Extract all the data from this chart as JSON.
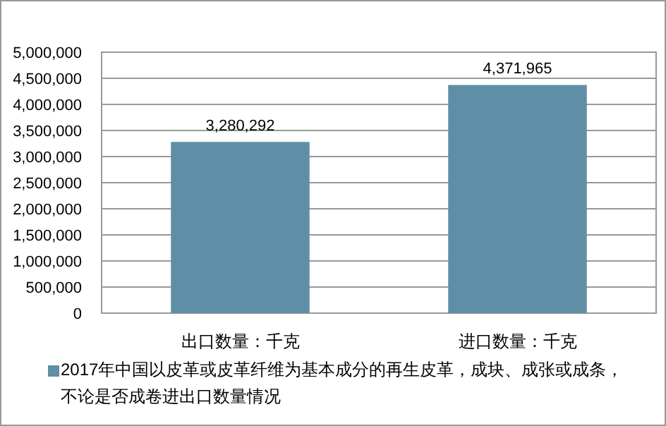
{
  "chart_data": {
    "type": "bar",
    "categories": [
      "出口数量：千克",
      "进口数量：千克"
    ],
    "series": [
      {
        "name": "2017年中国以皮革或皮革纤维为基本成分的再生皮革，成块、成张或成条，不论是否成卷进出口数量情况",
        "color": "#5f8fa7",
        "values": [
          3280292,
          4371965
        ]
      }
    ],
    "value_labels": [
      "3,280,292",
      "4,371,965"
    ],
    "ylim": [
      0,
      5000000
    ],
    "yticks": [
      0,
      {
        "value": 500000,
        "label": "500,000"
      },
      {
        "value": 1000000,
        "label": "1,000,000"
      },
      {
        "value": 1500000,
        "label": "1,500,000"
      },
      {
        "value": 2000000,
        "label": "2,000,000"
      },
      {
        "value": 2500000,
        "label": "2,500,000"
      },
      {
        "value": 3000000,
        "label": "3,000,000"
      },
      {
        "value": 3500000,
        "label": "3,500,000"
      },
      {
        "value": 4000000,
        "label": "4,000,000"
      },
      {
        "value": 4500000,
        "label": "4,500,000"
      },
      {
        "value": 5000000,
        "label": "5,000,000"
      }
    ],
    "grid": "y",
    "legend": "bottom"
  }
}
